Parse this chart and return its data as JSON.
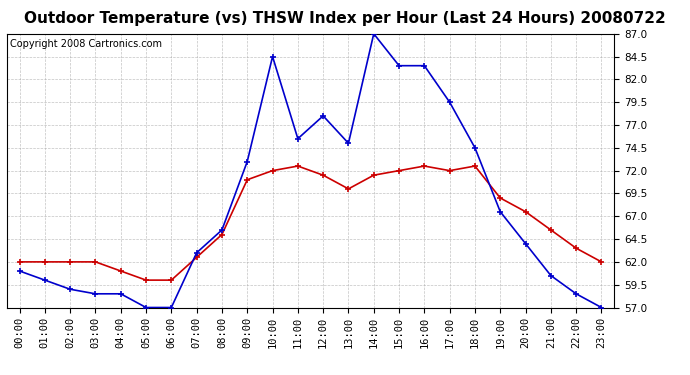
{
  "title": "Outdoor Temperature (vs) THSW Index per Hour (Last 24 Hours) 20080722",
  "copyright": "Copyright 2008 Cartronics.com",
  "hours": [
    "00:00",
    "01:00",
    "02:00",
    "03:00",
    "04:00",
    "05:00",
    "06:00",
    "07:00",
    "08:00",
    "09:00",
    "10:00",
    "11:00",
    "12:00",
    "13:00",
    "14:00",
    "15:00",
    "16:00",
    "17:00",
    "18:00",
    "19:00",
    "20:00",
    "21:00",
    "22:00",
    "23:00"
  ],
  "temp": [
    62.0,
    62.0,
    62.0,
    62.0,
    61.0,
    60.0,
    60.0,
    62.5,
    65.0,
    71.0,
    72.0,
    72.5,
    71.5,
    70.0,
    71.5,
    72.0,
    72.5,
    72.0,
    72.5,
    69.0,
    67.5,
    65.5,
    63.5,
    62.0
  ],
  "thsw": [
    61.0,
    60.0,
    59.0,
    58.5,
    58.5,
    57.0,
    57.0,
    63.0,
    65.5,
    73.0,
    84.5,
    75.5,
    78.0,
    75.0,
    87.0,
    83.5,
    83.5,
    79.5,
    74.5,
    67.5,
    64.0,
    60.5,
    58.5,
    57.0
  ],
  "temp_color": "#cc0000",
  "thsw_color": "#0000cc",
  "ylim_min": 57.0,
  "ylim_max": 87.0,
  "yticks": [
    57.0,
    59.5,
    62.0,
    64.5,
    67.0,
    69.5,
    72.0,
    74.5,
    77.0,
    79.5,
    82.0,
    84.5,
    87.0
  ],
  "background_color": "#ffffff",
  "plot_bg_color": "#ffffff",
  "grid_color": "#aaaaaa",
  "title_fontsize": 11,
  "copyright_fontsize": 7,
  "tick_fontsize": 7.5,
  "border_color": "#000000"
}
